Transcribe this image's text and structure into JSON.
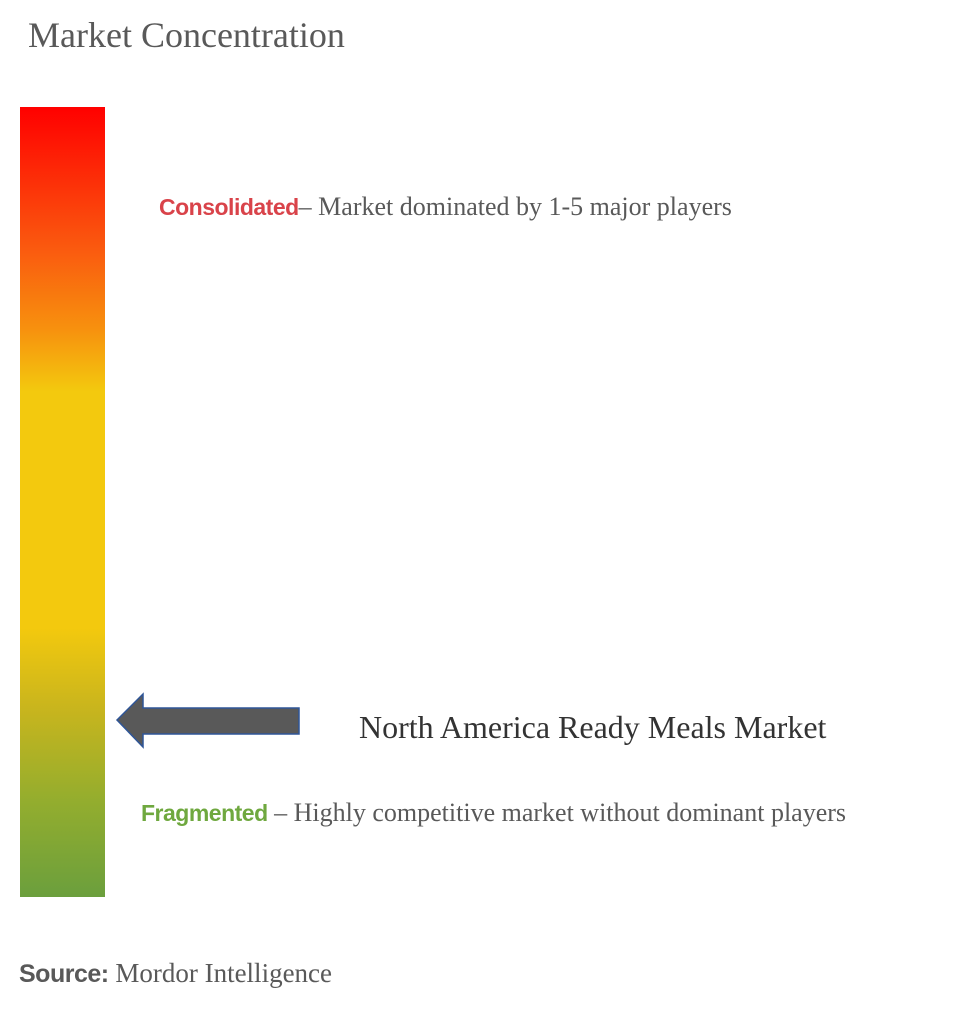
{
  "header": {
    "title": "Market Concentration"
  },
  "consolidated": {
    "label": "Consolidated",
    "description": "– Market dominated by 1-5 major players"
  },
  "market": {
    "label": "North America Ready Meals Market"
  },
  "fragmented": {
    "label": "Fragmented",
    "description": " – Highly competitive market without dominant players"
  },
  "source": {
    "label": "Source:",
    "text": " Mordor Intelligence"
  }
}
